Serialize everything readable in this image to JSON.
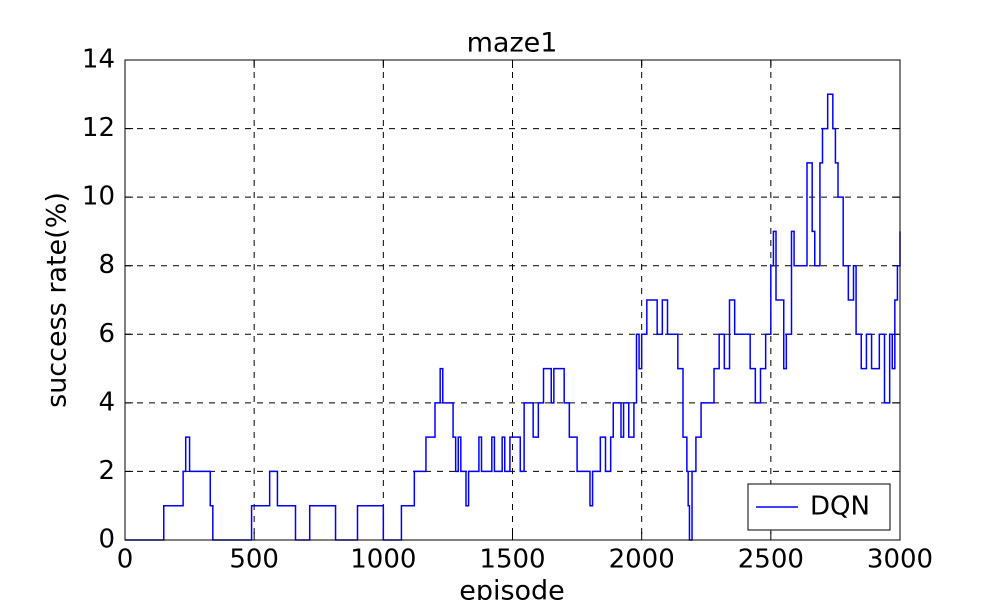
{
  "chart_data": {
    "type": "line",
    "title": "maze1",
    "x_label": "episode",
    "y_label": "success rate(%)",
    "x": [
      0,
      150,
      150,
      225,
      225,
      235,
      235,
      250,
      250,
      330,
      330,
      340,
      340,
      490,
      490,
      560,
      560,
      590,
      590,
      660,
      660,
      715,
      715,
      815,
      815,
      900,
      900,
      1000,
      1000,
      1070,
      1070,
      1120,
      1120,
      1165,
      1165,
      1200,
      1200,
      1220,
      1220,
      1230,
      1230,
      1270,
      1270,
      1280,
      1280,
      1290,
      1290,
      1300,
      1300,
      1320,
      1320,
      1330,
      1330,
      1370,
      1370,
      1380,
      1380,
      1420,
      1420,
      1430,
      1430,
      1460,
      1460,
      1470,
      1470,
      1490,
      1490,
      1530,
      1530,
      1545,
      1545,
      1580,
      1580,
      1600,
      1600,
      1620,
      1620,
      1650,
      1650,
      1660,
      1660,
      1700,
      1700,
      1720,
      1720,
      1750,
      1750,
      1800,
      1800,
      1810,
      1810,
      1840,
      1840,
      1860,
      1860,
      1880,
      1880,
      1890,
      1890,
      1920,
      1920,
      1930,
      1930,
      1950,
      1950,
      1970,
      1970,
      1980,
      1980,
      1990,
      1990,
      2000,
      2000,
      2020,
      2020,
      2060,
      2060,
      2080,
      2080,
      2100,
      2100,
      2140,
      2140,
      2160,
      2160,
      2175,
      2175,
      2180,
      2180,
      2185,
      2185,
      2195,
      2195,
      2210,
      2210,
      2230,
      2230,
      2280,
      2280,
      2300,
      2300,
      2320,
      2320,
      2340,
      2340,
      2360,
      2360,
      2420,
      2420,
      2440,
      2440,
      2460,
      2460,
      2480,
      2480,
      2500,
      2500,
      2510,
      2510,
      2520,
      2520,
      2550,
      2550,
      2560,
      2560,
      2580,
      2580,
      2590,
      2590,
      2640,
      2640,
      2660,
      2660,
      2670,
      2670,
      2690,
      2690,
      2700,
      2700,
      2720,
      2720,
      2740,
      2740,
      2750,
      2750,
      2760,
      2760,
      2780,
      2780,
      2800,
      2800,
      2820,
      2820,
      2830,
      2830,
      2850,
      2850,
      2870,
      2870,
      2890,
      2890,
      2920,
      2920,
      2940,
      2940,
      2960,
      2960,
      2970,
      2970,
      2980,
      2980,
      2990,
      2990,
      3000,
      3000
    ],
    "series": [
      {
        "name": "DQN",
        "color": "#0000ff",
        "values": [
          0,
          0,
          1,
          1,
          2,
          2,
          3,
          3,
          2,
          2,
          1,
          1,
          0,
          0,
          1,
          1,
          2,
          2,
          1,
          1,
          0,
          0,
          1,
          1,
          0,
          0,
          1,
          1,
          0,
          0,
          1,
          1,
          2,
          2,
          3,
          3,
          4,
          4,
          5,
          5,
          4,
          4,
          3,
          3,
          2,
          2,
          3,
          3,
          2,
          2,
          1,
          1,
          2,
          2,
          3,
          3,
          2,
          2,
          3,
          3,
          2,
          2,
          3,
          3,
          2,
          2,
          3,
          3,
          2,
          2,
          4,
          4,
          3,
          3,
          4,
          4,
          5,
          5,
          4,
          4,
          5,
          5,
          4,
          4,
          3,
          3,
          2,
          2,
          1,
          1,
          2,
          2,
          3,
          3,
          2,
          2,
          3,
          3,
          4,
          4,
          3,
          3,
          4,
          4,
          3,
          3,
          4,
          4,
          6,
          6,
          5,
          5,
          6,
          6,
          7,
          7,
          6,
          6,
          7,
          7,
          6,
          6,
          5,
          5,
          3,
          3,
          2,
          2,
          1,
          1,
          0,
          0,
          2,
          2,
          3,
          3,
          4,
          4,
          5,
          5,
          6,
          6,
          5,
          5,
          7,
          7,
          6,
          6,
          5,
          5,
          4,
          4,
          5,
          5,
          6,
          6,
          8,
          8,
          9,
          9,
          7,
          7,
          5,
          5,
          6,
          6,
          9,
          9,
          8,
          8,
          11,
          11,
          9,
          9,
          8,
          8,
          11,
          11,
          12,
          12,
          13,
          13,
          12,
          12,
          11,
          11,
          10,
          10,
          8,
          8,
          7,
          7,
          8,
          8,
          6,
          6,
          5,
          5,
          6,
          6,
          5,
          5,
          6,
          6,
          4,
          4,
          6,
          6,
          5,
          5,
          7,
          7,
          8,
          8,
          9
        ]
      }
    ],
    "xlim": [
      0,
      3000
    ],
    "xticks": [
      0,
      500,
      1000,
      1500,
      2000,
      2500,
      3000
    ],
    "ylim": [
      0,
      14
    ],
    "yticks": [
      0,
      2,
      4,
      6,
      8,
      10,
      12,
      14
    ],
    "grid": true,
    "legend": "lower right"
  }
}
